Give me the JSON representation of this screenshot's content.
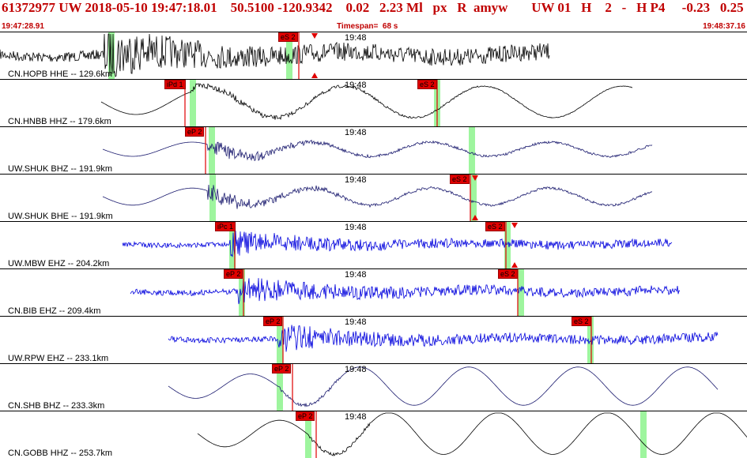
{
  "header": {
    "title": "61372977 UW 2018-05-10 19:47:18.01    50.5100 -120.9342    0.02   2.23 Ml   px   R  amyw       UW 01   H    2   -   H P4     -0.23   0.25",
    "start_time": "19:47:28.91",
    "timespan": "Timespan=  68 s",
    "end_time": "19:48:37.16"
  },
  "minute_label": "19:48",
  "colors": {
    "title": "#c00000",
    "pick": "#e00000",
    "window": "#9ef59e"
  },
  "panels": [
    {
      "station": "CN.HOPB HHE -- 129.6km",
      "color": "#000000",
      "start": 0,
      "end": 695,
      "amp": 18,
      "onset": 130,
      "picks": [
        {
          "label": "eS 2",
          "x": 352,
          "line": 378
        }
      ],
      "windows": [
        137,
        362
      ],
      "triangles": [
        {
          "x": 398,
          "dir": "down"
        },
        {
          "x": 398,
          "dir": "up"
        }
      ],
      "kind": "noisy"
    },
    {
      "station": "CN.HNBB HHZ -- 179.6km",
      "color": "#000000",
      "start": 128,
      "end": 800,
      "amp": 20,
      "onset": 240,
      "picks": [
        {
          "label": "iPd 1",
          "x": 208,
          "line": 234
        },
        {
          "label": "eS 2",
          "x": 528,
          "line": 553
        }
      ],
      "windows": [
        240,
        549
      ],
      "triangles": [],
      "kind": "wave"
    },
    {
      "station": "UW.SHUK BHZ -- 191.9km",
      "color": "#1a1a6e",
      "start": 130,
      "end": 825,
      "amp": 15,
      "onset": 262,
      "picks": [
        {
          "label": "eP 2",
          "x": 234,
          "line": 260
        }
      ],
      "windows": [
        264,
        593
      ],
      "triangles": [],
      "kind": "mixed"
    },
    {
      "station": "UW.SHUK BHE -- 191.9km",
      "color": "#1a1a6e",
      "start": 130,
      "end": 825,
      "amp": 18,
      "onset": 262,
      "picks": [
        {
          "label": "eS 2",
          "x": 569,
          "line": 595
        }
      ],
      "windows": [
        265,
        595
      ],
      "triangles": [
        {
          "x": 601,
          "dir": "down"
        },
        {
          "x": 601,
          "dir": "up"
        }
      ],
      "kind": "mixed"
    },
    {
      "station": "UW.MBW EHZ -- 204.2km",
      "color": "#0000dd",
      "start": 155,
      "end": 850,
      "amp": 9,
      "onset": 290,
      "picks": [
        {
          "label": "iPc 1",
          "x": 272,
          "line": 297
        },
        {
          "label": "eS 2",
          "x": 614,
          "line": 640
        }
      ],
      "windows": [
        290,
        638
      ],
      "triangles": [
        {
          "x": 651,
          "dir": "down"
        },
        {
          "x": 651,
          "dir": "up"
        }
      ],
      "kind": "noisy"
    },
    {
      "station": "CN.BIB EHZ -- 209.4km",
      "color": "#0000dd",
      "start": 165,
      "end": 860,
      "amp": 10,
      "onset": 300,
      "picks": [
        {
          "label": "eP 2",
          "x": 283,
          "line": 308
        },
        {
          "label": "eS 2",
          "x": 630,
          "line": 655
        }
      ],
      "windows": [
        302,
        655
      ],
      "triangles": [],
      "kind": "noisy"
    },
    {
      "station": "UW.RPW EHZ -- 233.1km",
      "color": "#0000dd",
      "start": 213,
      "end": 908,
      "amp": 10,
      "onset": 350,
      "picks": [
        {
          "label": "eP 2",
          "x": 333,
          "line": 358
        },
        {
          "label": "eS 2",
          "x": 723,
          "line": 748
        }
      ],
      "windows": [
        350,
        743
      ],
      "triangles": [],
      "kind": "noisy"
    },
    {
      "station": "CN.SHB BHZ -- 233.3km",
      "color": "#1a1a6e",
      "start": 213,
      "end": 908,
      "amp": 22,
      "onset": 352,
      "picks": [
        {
          "label": "eP 2",
          "x": 344,
          "line": 370
        }
      ],
      "windows": [
        350
      ],
      "triangles": [],
      "kind": "smooth"
    },
    {
      "station": "CN.GOBB HHZ -- 253.7km",
      "color": "#000000",
      "start": 250,
      "end": 945,
      "amp": 24,
      "onset": 390,
      "picks": [
        {
          "label": "eP 2",
          "x": 374,
          "line": 400
        }
      ],
      "windows": [
        386,
        810
      ],
      "triangles": [],
      "kind": "smooth"
    }
  ]
}
